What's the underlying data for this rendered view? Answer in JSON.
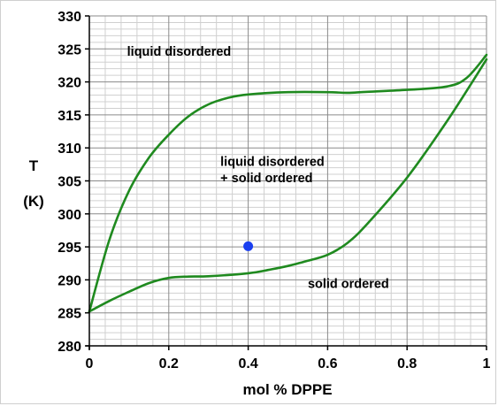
{
  "chart_data": {
    "type": "line",
    "title": "",
    "xlabel": "mol % DPPE",
    "ylabel_line1": "T",
    "ylabel_line2": "(K)",
    "xlim": [
      0,
      1
    ],
    "ylim": [
      280,
      330
    ],
    "x_major_ticks": [
      0,
      0.2,
      0.4,
      0.6,
      0.8,
      1
    ],
    "x_tick_labels": [
      "0",
      "0.2",
      "0.4",
      "0.6",
      "0.8",
      "1"
    ],
    "y_major_ticks": [
      280,
      285,
      290,
      295,
      300,
      305,
      310,
      315,
      320,
      325,
      330
    ],
    "y_tick_labels": [
      "280",
      "285",
      "290",
      "295",
      "300",
      "305",
      "310",
      "315",
      "320",
      "325",
      "330"
    ],
    "x_minor_step": 0.04,
    "y_minor_step": 1,
    "grid": true,
    "legend": "none",
    "line_color": "#1f8a1f",
    "point_color": "#1a3ff0",
    "series": [
      {
        "role": "liquidus",
        "points": [
          [
            0,
            285.2
          ],
          [
            0.05,
            296
          ],
          [
            0.1,
            303.5
          ],
          [
            0.15,
            308.5
          ],
          [
            0.2,
            312
          ],
          [
            0.25,
            314.8
          ],
          [
            0.3,
            316.6
          ],
          [
            0.35,
            317.6
          ],
          [
            0.4,
            318.1
          ],
          [
            0.5,
            318.45
          ],
          [
            0.6,
            318.45
          ],
          [
            0.65,
            318.35
          ],
          [
            0.7,
            318.5
          ],
          [
            0.8,
            318.8
          ],
          [
            0.9,
            319.3
          ],
          [
            0.95,
            320.6
          ],
          [
            1,
            324.1
          ]
        ]
      },
      {
        "role": "solidus",
        "points": [
          [
            0,
            285.2
          ],
          [
            0.05,
            286.8
          ],
          [
            0.1,
            288.2
          ],
          [
            0.15,
            289.5
          ],
          [
            0.2,
            290.3
          ],
          [
            0.25,
            290.5
          ],
          [
            0.3,
            290.55
          ],
          [
            0.4,
            291
          ],
          [
            0.45,
            291.5
          ],
          [
            0.5,
            292.1
          ],
          [
            0.55,
            292.9
          ],
          [
            0.6,
            293.8
          ],
          [
            0.65,
            295.6
          ],
          [
            0.7,
            298.5
          ],
          [
            0.8,
            305.5
          ],
          [
            0.9,
            314
          ],
          [
            1,
            323.4
          ]
        ]
      }
    ],
    "highlight_point": {
      "x": 0.4,
      "y": 295.1
    },
    "annotations": [
      {
        "text": "liquid disordered",
        "x": 0.095,
        "y": 324
      },
      {
        "text": "liquid disordered",
        "x": 0.33,
        "y": 307.3
      },
      {
        "text": "+ solid ordered",
        "x": 0.33,
        "y": 304.8
      },
      {
        "text": "solid ordered",
        "x": 0.55,
        "y": 288.8
      }
    ]
  }
}
